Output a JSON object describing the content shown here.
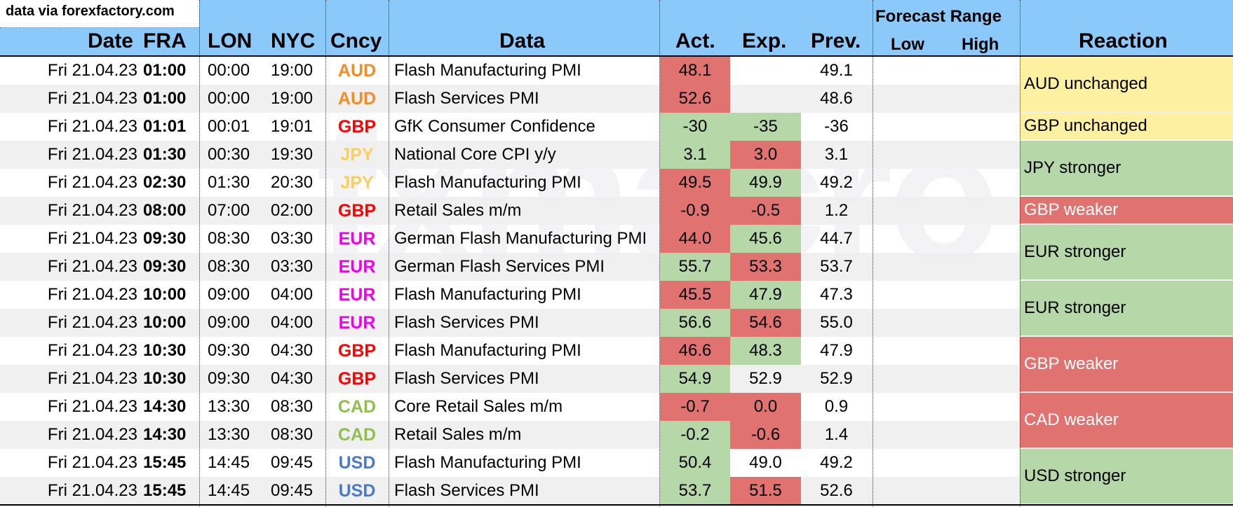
{
  "source": "data via forexfactory.com",
  "headers": {
    "date": "Date",
    "fra": "FRA",
    "lon": "LON",
    "nyc": "NYC",
    "cncy": "Cncy",
    "data": "Data",
    "act": "Act.",
    "exp": "Exp.",
    "prev": "Prev.",
    "forecast_range": "Forecast Range",
    "low": "Low",
    "high": "High",
    "reaction": "Reaction"
  },
  "watermark": "fxmacro",
  "colors": {
    "header_bg": "#8cc9fb",
    "red": "#e07370",
    "green": "#b6d7a8",
    "yellow": "#fdf1a1",
    "AUD": "#f28c28",
    "GBP": "#ff0000",
    "JPY": "#f9cf62",
    "EUR": "#ee00ee",
    "CAD": "#8fbf4f",
    "USD": "#4a7bc8"
  },
  "rows": [
    {
      "date": "Fri 21.04.23",
      "fra": "01:00",
      "lon": "00:00",
      "nyc": "19:00",
      "cncy": "AUD",
      "data": "Flash Manufacturing PMI",
      "act": "48.1",
      "exp": "",
      "prev": "49.1",
      "act_color": "red",
      "exp_color": ""
    },
    {
      "date": "Fri 21.04.23",
      "fra": "01:00",
      "lon": "00:00",
      "nyc": "19:00",
      "cncy": "AUD",
      "data": "Flash Services PMI",
      "act": "52.6",
      "exp": "",
      "prev": "48.6",
      "act_color": "red",
      "exp_color": ""
    },
    {
      "date": "Fri 21.04.23",
      "fra": "01:01",
      "lon": "00:01",
      "nyc": "19:01",
      "cncy": "GBP",
      "data": "GfK Consumer Confidence",
      "act": "-30",
      "exp": "-35",
      "prev": "-36",
      "act_color": "green",
      "exp_color": "green"
    },
    {
      "date": "Fri 21.04.23",
      "fra": "01:30",
      "lon": "00:30",
      "nyc": "19:30",
      "cncy": "JPY",
      "data": "National Core CPI y/y",
      "act": "3.1",
      "exp": "3.0",
      "prev": "3.1",
      "act_color": "green",
      "exp_color": "red"
    },
    {
      "date": "Fri 21.04.23",
      "fra": "02:30",
      "lon": "01:30",
      "nyc": "20:30",
      "cncy": "JPY",
      "data": "Flash Manufacturing PMI",
      "act": "49.5",
      "exp": "49.9",
      "prev": "49.2",
      "act_color": "red",
      "exp_color": "green"
    },
    {
      "date": "Fri 21.04.23",
      "fra": "08:00",
      "lon": "07:00",
      "nyc": "02:00",
      "cncy": "GBP",
      "data": "Retail Sales m/m",
      "act": "-0.9",
      "exp": "-0.5",
      "prev": "1.2",
      "act_color": "red",
      "exp_color": "red"
    },
    {
      "date": "Fri 21.04.23",
      "fra": "09:30",
      "lon": "08:30",
      "nyc": "03:30",
      "cncy": "EUR",
      "data": "German Flash Manufacturing PMI",
      "act": "44.0",
      "exp": "45.6",
      "prev": "44.7",
      "act_color": "red",
      "exp_color": "green"
    },
    {
      "date": "Fri 21.04.23",
      "fra": "09:30",
      "lon": "08:30",
      "nyc": "03:30",
      "cncy": "EUR",
      "data": "German Flash Services PMI",
      "act": "55.7",
      "exp": "53.3",
      "prev": "53.7",
      "act_color": "green",
      "exp_color": "red"
    },
    {
      "date": "Fri 21.04.23",
      "fra": "10:00",
      "lon": "09:00",
      "nyc": "04:00",
      "cncy": "EUR",
      "data": "Flash Manufacturing PMI",
      "act": "45.5",
      "exp": "47.9",
      "prev": "47.3",
      "act_color": "red",
      "exp_color": "green"
    },
    {
      "date": "Fri 21.04.23",
      "fra": "10:00",
      "lon": "09:00",
      "nyc": "04:00",
      "cncy": "EUR",
      "data": "Flash Services PMI",
      "act": "56.6",
      "exp": "54.6",
      "prev": "55.0",
      "act_color": "green",
      "exp_color": "red"
    },
    {
      "date": "Fri 21.04.23",
      "fra": "10:30",
      "lon": "09:30",
      "nyc": "04:30",
      "cncy": "GBP",
      "data": "Flash Manufacturing PMI",
      "act": "46.6",
      "exp": "48.3",
      "prev": "47.9",
      "act_color": "red",
      "exp_color": "green"
    },
    {
      "date": "Fri 21.04.23",
      "fra": "10:30",
      "lon": "09:30",
      "nyc": "04:30",
      "cncy": "GBP",
      "data": "Flash Services PMI",
      "act": "54.9",
      "exp": "52.9",
      "prev": "52.9",
      "act_color": "green",
      "exp_color": ""
    },
    {
      "date": "Fri 21.04.23",
      "fra": "14:30",
      "lon": "13:30",
      "nyc": "08:30",
      "cncy": "CAD",
      "data": "Core Retail Sales m/m",
      "act": "-0.7",
      "exp": "0.0",
      "prev": "0.9",
      "act_color": "red",
      "exp_color": "red"
    },
    {
      "date": "Fri 21.04.23",
      "fra": "14:30",
      "lon": "13:30",
      "nyc": "08:30",
      "cncy": "CAD",
      "data": "Retail Sales m/m",
      "act": "-0.2",
      "exp": "-0.6",
      "prev": "1.4",
      "act_color": "green",
      "exp_color": "red"
    },
    {
      "date": "Fri 21.04.23",
      "fra": "15:45",
      "lon": "14:45",
      "nyc": "09:45",
      "cncy": "USD",
      "data": "Flash Manufacturing PMI",
      "act": "50.4",
      "exp": "49.0",
      "prev": "49.2",
      "act_color": "green",
      "exp_color": ""
    },
    {
      "date": "Fri 21.04.23",
      "fra": "15:45",
      "lon": "14:45",
      "nyc": "09:45",
      "cncy": "USD",
      "data": "Flash Services PMI",
      "act": "53.7",
      "exp": "51.5",
      "prev": "52.6",
      "act_color": "green",
      "exp_color": "red"
    }
  ],
  "reactions": [
    {
      "text": "AUD unchanged",
      "color": "yellow",
      "span": 2
    },
    {
      "text": "GBP unchanged",
      "color": "yellow",
      "span": 1
    },
    {
      "text": "JPY stronger",
      "color": "green",
      "span": 2
    },
    {
      "text": "GBP weaker",
      "color": "red",
      "span": 1
    },
    {
      "text": "EUR stronger",
      "color": "green",
      "span": 2
    },
    {
      "text": "EUR stronger",
      "color": "green",
      "span": 2
    },
    {
      "text": "GBP weaker",
      "color": "red",
      "span": 2
    },
    {
      "text": "CAD weaker",
      "color": "red",
      "span": 2
    },
    {
      "text": "USD stronger",
      "color": "green",
      "span": 2
    }
  ]
}
